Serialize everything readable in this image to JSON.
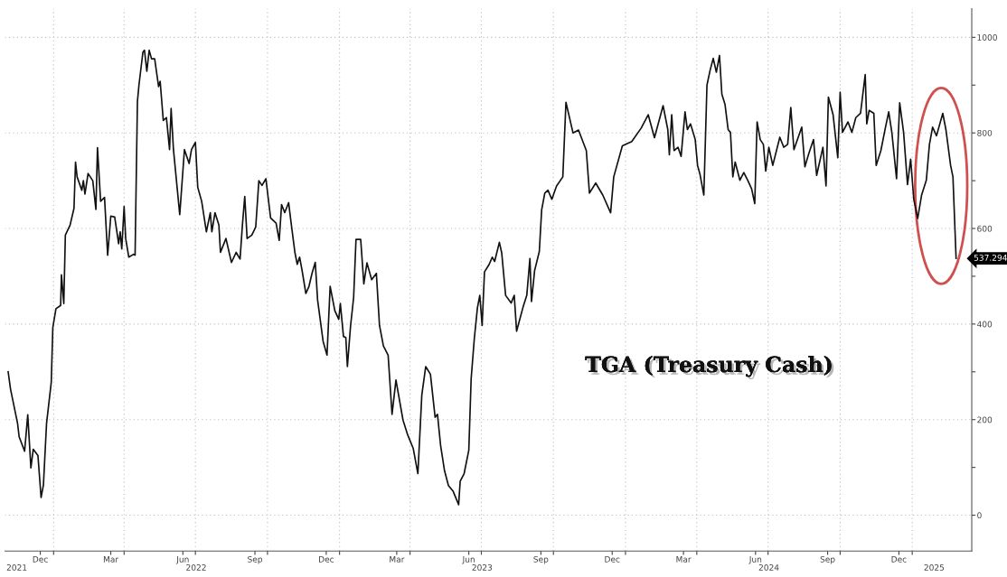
{
  "chart_data": {
    "type": "line",
    "annotations": [
      "TGA (Treasury Cash)",
      {
        "text": "537.294",
        "x": "2025-02-26",
        "y": 537.294
      }
    ],
    "x": [
      "2021-11-04",
      "2021-11-07",
      "2021-11-16",
      "2021-11-18",
      "2021-11-25",
      "2021-11-29",
      "2021-12-03",
      "2021-12-06",
      "2021-12-12",
      "2021-12-16",
      "2021-12-19",
      "2021-12-23",
      "2021-12-29",
      "2021-12-31",
      "2022-01-04",
      "2022-01-10",
      "2022-01-11",
      "2022-01-14",
      "2022-01-16",
      "2022-01-22",
      "2022-01-27",
      "2022-01-29",
      "2022-01-31",
      "2022-02-06",
      "2022-02-08",
      "2022-02-10",
      "2022-02-14",
      "2022-02-20",
      "2022-02-24",
      "2022-02-26",
      "2022-03-02",
      "2022-03-07",
      "2022-03-11",
      "2022-03-15",
      "2022-03-20",
      "2022-03-25",
      "2022-03-27",
      "2022-03-29",
      "2022-04-01",
      "2022-04-03",
      "2022-04-07",
      "2022-04-13",
      "2022-04-15",
      "2022-04-18",
      "2022-04-20",
      "2022-04-25",
      "2022-04-27",
      "2022-04-30",
      "2022-05-03",
      "2022-05-06",
      "2022-05-10",
      "2022-05-15",
      "2022-05-17",
      "2022-05-21",
      "2022-05-25",
      "2022-05-29",
      "2022-05-31",
      "2022-06-03",
      "2022-06-11",
      "2022-06-17",
      "2022-06-23",
      "2022-06-26",
      "2022-07-01",
      "2022-07-04",
      "2022-07-09",
      "2022-07-15",
      "2022-07-20",
      "2022-07-22",
      "2022-07-26",
      "2022-07-31",
      "2022-08-02",
      "2022-08-09",
      "2022-08-16",
      "2022-08-22",
      "2022-08-27",
      "2022-08-30",
      "2022-09-02",
      "2022-09-05",
      "2022-09-11",
      "2022-09-16",
      "2022-09-20",
      "2022-09-24",
      "2022-09-29",
      "2022-10-05",
      "2022-10-12",
      "2022-10-16",
      "2022-10-19",
      "2022-10-23",
      "2022-10-28",
      "2022-10-31",
      "2022-11-05",
      "2022-11-08",
      "2022-11-11",
      "2022-11-14",
      "2022-11-19",
      "2022-11-23",
      "2022-11-27",
      "2022-12-01",
      "2022-12-04",
      "2022-12-11",
      "2022-12-16",
      "2022-12-20",
      "2022-12-26",
      "2022-12-31",
      "2023-01-02",
      "2023-01-06",
      "2023-01-09",
      "2023-01-11",
      "2023-01-15",
      "2023-01-19",
      "2023-01-22",
      "2023-01-28",
      "2023-02-01",
      "2023-02-05",
      "2023-02-11",
      "2023-02-17",
      "2023-02-21",
      "2023-02-26",
      "2023-03-04",
      "2023-03-09",
      "2023-03-14",
      "2023-03-23",
      "2023-03-29",
      "2023-04-05",
      "2023-04-11",
      "2023-04-16",
      "2023-04-21",
      "2023-04-27",
      "2023-05-03",
      "2023-05-06",
      "2023-05-10",
      "2023-05-15",
      "2023-05-20",
      "2023-05-26",
      "2023-06-02",
      "2023-06-04",
      "2023-06-09",
      "2023-06-15",
      "2023-06-18",
      "2023-06-22",
      "2023-06-26",
      "2023-06-29",
      "2023-07-02",
      "2023-07-05",
      "2023-07-11",
      "2023-07-15",
      "2023-07-18",
      "2023-07-24",
      "2023-07-27",
      "2023-08-01",
      "2023-08-08",
      "2023-08-12",
      "2023-08-15",
      "2023-08-23",
      "2023-08-28",
      "2023-09-01",
      "2023-09-03",
      "2023-09-07",
      "2023-09-13",
      "2023-09-16",
      "2023-09-20",
      "2023-09-24",
      "2023-09-29",
      "2023-10-05",
      "2023-10-13",
      "2023-10-17",
      "2023-10-26",
      "2023-11-02",
      "2023-11-12",
      "2023-11-16",
      "2023-11-24",
      "2023-12-03",
      "2023-12-13",
      "2023-12-17",
      "2023-12-28",
      "2024-01-09",
      "2024-01-21",
      "2024-01-30",
      "2024-02-07",
      "2024-02-18",
      "2024-02-24",
      "2024-02-26",
      "2024-02-29",
      "2024-03-03",
      "2024-03-08",
      "2024-03-12",
      "2024-03-17",
      "2024-03-20",
      "2024-03-24",
      "2024-03-30",
      "2024-04-02",
      "2024-04-05",
      "2024-04-10",
      "2024-04-14",
      "2024-04-18",
      "2024-04-22",
      "2024-04-26",
      "2024-04-30",
      "2024-05-03",
      "2024-05-07",
      "2024-05-11",
      "2024-05-14",
      "2024-05-17",
      "2024-05-20",
      "2024-05-26",
      "2024-05-31",
      "2024-06-05",
      "2024-06-10",
      "2024-06-14",
      "2024-06-17",
      "2024-06-21",
      "2024-06-25",
      "2024-06-28",
      "2024-07-02",
      "2024-07-07",
      "2024-07-16",
      "2024-07-21",
      "2024-07-26",
      "2024-07-30",
      "2024-08-03",
      "2024-08-13",
      "2024-08-17",
      "2024-08-22",
      "2024-08-28",
      "2024-09-01",
      "2024-09-09",
      "2024-09-13",
      "2024-09-16",
      "2024-09-22",
      "2024-09-28",
      "2024-10-01",
      "2024-10-04",
      "2024-10-11",
      "2024-10-16",
      "2024-10-21",
      "2024-10-27",
      "2024-11-02",
      "2024-11-04",
      "2024-11-07",
      "2024-11-13",
      "2024-11-16",
      "2024-11-22",
      "2024-11-28",
      "2024-12-02",
      "2024-12-06",
      "2024-12-12",
      "2024-12-16",
      "2024-12-21",
      "2024-12-26",
      "2024-12-30",
      "2025-01-03",
      "2025-01-08",
      "2025-01-13",
      "2025-01-19",
      "2025-01-23",
      "2025-01-27",
      "2025-02-01",
      "2025-02-09",
      "2025-02-13",
      "2025-02-19",
      "2025-02-22",
      "2025-02-26"
    ],
    "series": [
      {
        "color": "#111111",
        "values": [
          300,
          264,
          192,
          164,
          134,
          210,
          99,
          138,
          125,
          37,
          63,
          192,
          278,
          393,
          432,
          439,
          503,
          443,
          586,
          607,
          642,
          739,
          708,
          680,
          700,
          672,
          715,
          700,
          640,
          769,
          657,
          665,
          544,
          626,
          624,
          568,
          593,
          557,
          646,
          579,
          540,
          546,
          544,
          866,
          901,
          969,
          973,
          929,
          973,
          955,
          955,
          897,
          908,
          826,
          832,
          765,
          851,
          765,
          629,
          765,
          736,
          765,
          780,
          686,
          657,
          593,
          633,
          593,
          633,
          607,
          550,
          579,
          529,
          550,
          536,
          607,
          667,
          579,
          586,
          603,
          700,
          690,
          704,
          622,
          611,
          575,
          650,
          633,
          654,
          614,
          550,
          525,
          540,
          514,
          464,
          479,
          507,
          529,
          450,
          364,
          335,
          479,
          428,
          410,
          443,
          374,
          372,
          311,
          395,
          456,
          577,
          577,
          484,
          528,
          493,
          506,
          397,
          354,
          335,
          211,
          283,
          199,
          168,
          140,
          87,
          251,
          311,
          295,
          205,
          211,
          146,
          93,
          62,
          50,
          22,
          71,
          87,
          136,
          286,
          369,
          434,
          460,
          397,
          509,
          525,
          540,
          531,
          571,
          549,
          460,
          444,
          460,
          385,
          434,
          460,
          537,
          447,
          512,
          552,
          639,
          674,
          680,
          661,
          689,
          708,
          864,
          800,
          806,
          763,
          674,
          695,
          670,
          633,
          708,
          773,
          782,
          810,
          838,
          790,
          857,
          807,
          754,
          838,
          763,
          770,
          751,
          844,
          807,
          819,
          786,
          732,
          714,
          670,
          900,
          931,
          956,
          927,
          962,
          881,
          860,
          807,
          801,
          708,
          739,
          701,
          717,
          701,
          683,
          652,
          823,
          786,
          776,
          720,
          770,
          732,
          791,
          770,
          776,
          853,
          765,
          812,
          729,
          757,
          786,
          711,
          770,
          689,
          875,
          838,
          748,
          885,
          801,
          823,
          801,
          832,
          841,
          922,
          819,
          847,
          841,
          732,
          763,
          813,
          844,
          801,
          704,
          863,
          801,
          692,
          745,
          661,
          621,
          670,
          701,
          776,
          812,
          794,
          841,
          807,
          732,
          708,
          537.294
        ]
      }
    ],
    "xlim": [
      "2021-10-31",
      "2025-03-18"
    ],
    "xticks": [
      {
        "value": "2021-12-15",
        "label": "Dec"
      },
      {
        "value": "2022-03-15",
        "label": "Mar"
      },
      {
        "value": "2022-06-15",
        "label": "Jun"
      },
      {
        "value": "2022-09-15",
        "label": "Sep"
      },
      {
        "value": "2022-12-15",
        "label": "Dec"
      },
      {
        "value": "2023-03-15",
        "label": "Mar"
      },
      {
        "value": "2023-06-15",
        "label": "Jun"
      },
      {
        "value": "2023-09-15",
        "label": "Sep"
      },
      {
        "value": "2023-12-15",
        "label": "Dec"
      },
      {
        "value": "2024-03-15",
        "label": "Mar"
      },
      {
        "value": "2024-06-15",
        "label": "Jun"
      },
      {
        "value": "2024-09-15",
        "label": "Sep"
      },
      {
        "value": "2024-12-15",
        "label": "Dec"
      },
      {
        "value": "2022-01-01",
        "label": null
      },
      {
        "value": "2022-04-01",
        "label": null
      },
      {
        "value": "2022-07-01",
        "label": null
      },
      {
        "value": "2022-10-01",
        "label": null
      },
      {
        "value": "2023-01-01",
        "label": null
      },
      {
        "value": "2023-04-01",
        "label": null
      },
      {
        "value": "2023-07-01",
        "label": null
      },
      {
        "value": "2023-10-01",
        "label": null
      },
      {
        "value": "2024-01-01",
        "label": null
      },
      {
        "value": "2024-04-01",
        "label": null
      },
      {
        "value": "2024-07-01",
        "label": null
      },
      {
        "value": "2024-10-01",
        "label": null
      },
      {
        "value": "2025-01-01",
        "label": null
      }
    ],
    "x2ticks": [
      {
        "value": "2021-11-15",
        "label": "2021"
      },
      {
        "value": "2022-07-02",
        "label": "2022"
      },
      {
        "value": "2023-07-02",
        "label": "2023"
      },
      {
        "value": "2024-07-02",
        "label": "2024"
      },
      {
        "value": "2025-01-29",
        "label": "2025"
      }
    ],
    "ylim": [
      -75,
      1060
    ],
    "yticks": [
      0,
      200,
      400,
      600,
      800,
      1000,
      {
        "value": 100,
        "label": null
      },
      {
        "value": 300,
        "label": null
      },
      {
        "value": 500,
        "label": null
      },
      {
        "value": 700,
        "label": null
      },
      {
        "value": 900,
        "label": null
      }
    ],
    "x2lim": [
      "2021-10-31",
      "2025-03-18"
    ],
    "grid": true,
    "marker": "none",
    "line_style": "solid"
  }
}
